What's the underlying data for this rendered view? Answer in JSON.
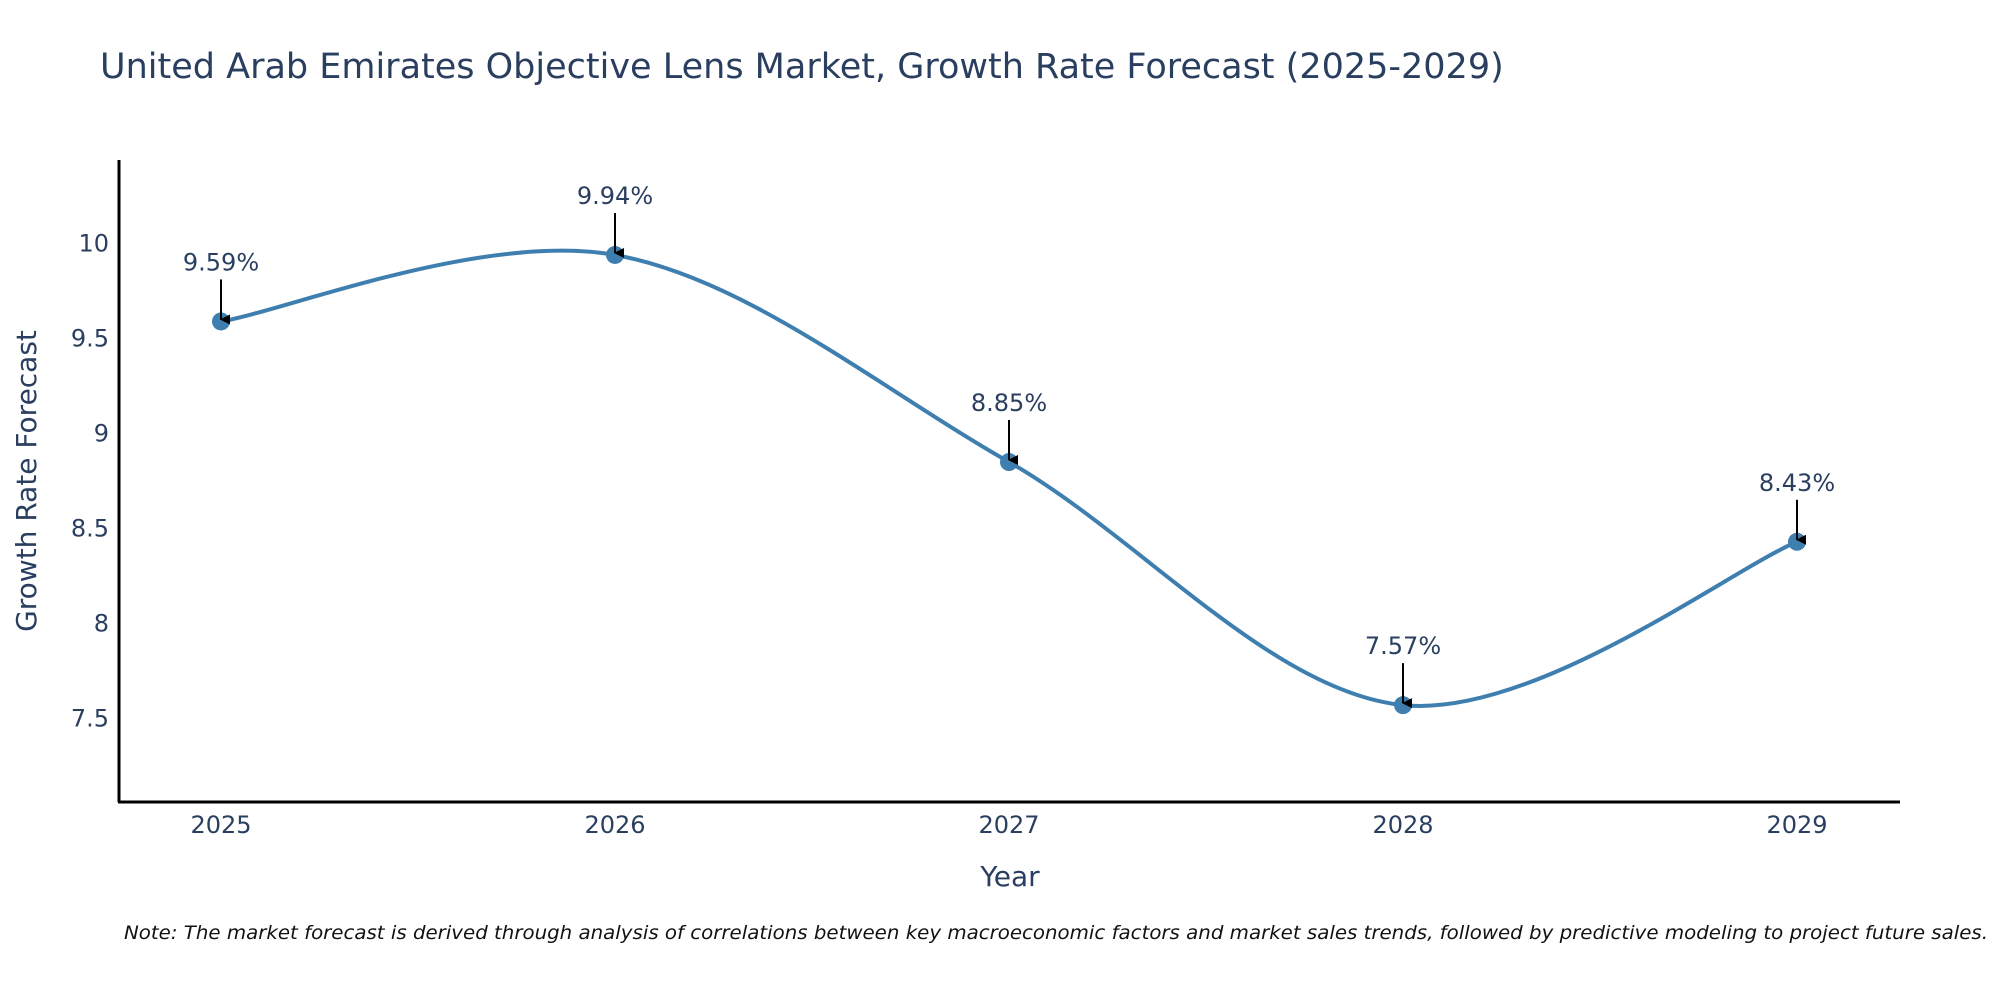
{
  "chart_data": {
    "type": "line",
    "title": "United Arab Emirates Objective Lens Market, Growth Rate Forecast (2025-2029)",
    "xlabel": "Year",
    "ylabel": "Growth Rate Forecast",
    "x": [
      "2025",
      "2026",
      "2027",
      "2028",
      "2029"
    ],
    "values": [
      9.59,
      9.94,
      8.85,
      7.57,
      8.43
    ],
    "data_labels": [
      "9.59%",
      "9.94%",
      "8.85%",
      "7.57%",
      "8.43%"
    ],
    "ylim": [
      7.06,
      10.44
    ],
    "yticks": [
      7.5,
      8,
      8.5,
      9,
      9.5,
      10
    ],
    "ytick_labels": [
      "7.5",
      "8",
      "8.5",
      "9",
      "9.5",
      "10"
    ],
    "grid": false,
    "line_color": "#3f7fb0",
    "marker_color": "#3f7fb0",
    "annotation_arrow_color": "#000000",
    "note": "Note: The market forecast is derived through analysis of correlations between key macroeconomic factors and market sales trends, followed by predictive modeling to project future sales."
  }
}
